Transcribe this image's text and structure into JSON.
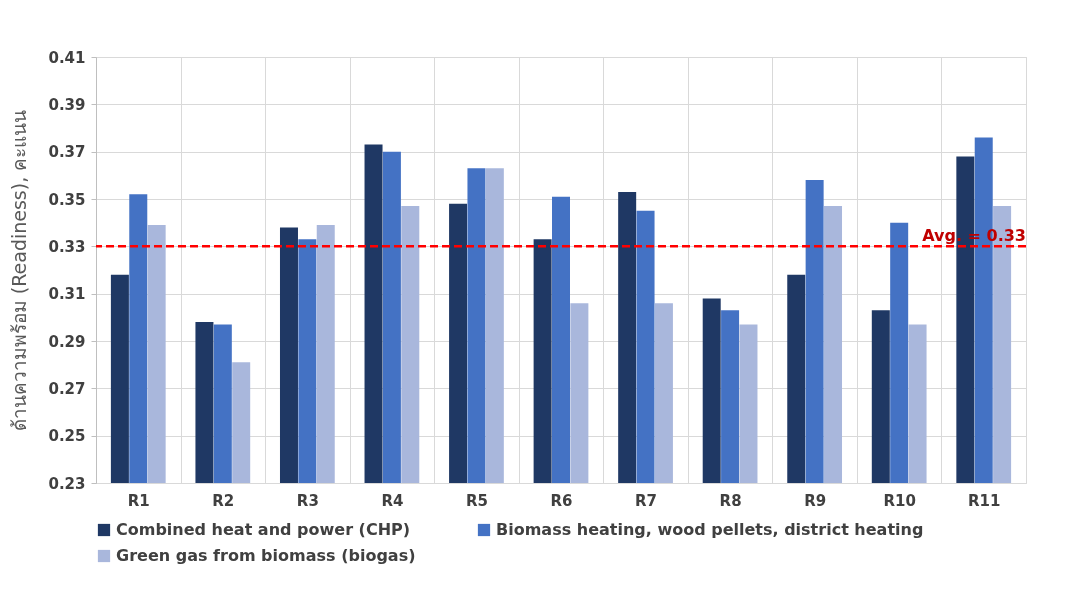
{
  "chart_data": {
    "type": "bar",
    "ylabel": "ด้านความพร้อม (Readiness), คะแนน",
    "categories": [
      "R1",
      "R2",
      "R3",
      "R4",
      "R5",
      "R6",
      "R7",
      "R8",
      "R9",
      "R10",
      "R11"
    ],
    "series": [
      {
        "name": "Combined heat and power (CHP)",
        "color": "#1f3864",
        "values": [
          0.318,
          0.298,
          0.338,
          0.373,
          0.348,
          0.333,
          0.353,
          0.308,
          0.318,
          0.303,
          0.368
        ]
      },
      {
        "name": "Biomass heating, wood pellets, district heating",
        "color": "#4472c4",
        "values": [
          0.352,
          0.297,
          0.333,
          0.37,
          0.363,
          0.351,
          0.345,
          0.303,
          0.358,
          0.34,
          0.376
        ]
      },
      {
        "name": "Green gas from biomass (biogas)",
        "color": "#a9b7dc",
        "values": [
          0.339,
          0.281,
          0.339,
          0.347,
          0.363,
          0.306,
          0.306,
          0.297,
          0.347,
          0.297,
          0.347
        ]
      }
    ],
    "ylim": [
      0.23,
      0.41
    ],
    "yticks": [
      0.23,
      0.25,
      0.27,
      0.29,
      0.31,
      0.33,
      0.35,
      0.37,
      0.39,
      0.41
    ],
    "ref_lines": [
      {
        "axis": "y",
        "value": 0.33,
        "label": "Avg. = 0.33",
        "color": "#ff0000",
        "line_style": "dashed"
      }
    ],
    "grid": true,
    "legend": "bottom"
  }
}
